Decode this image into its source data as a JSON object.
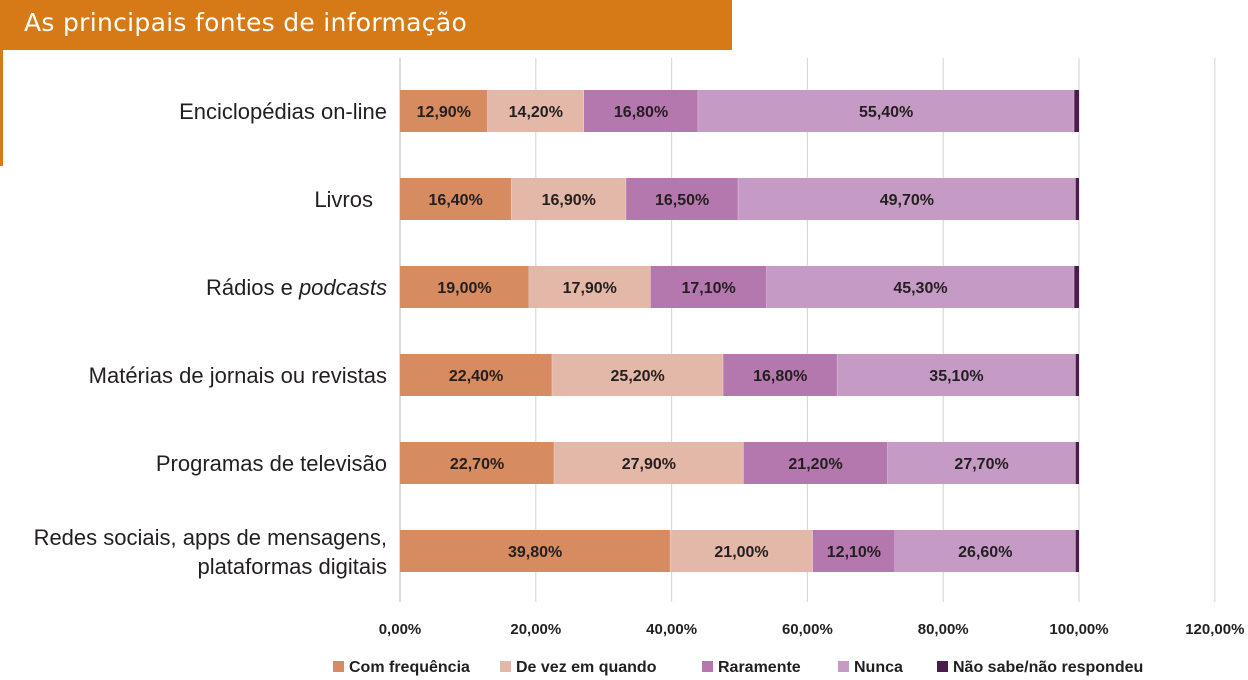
{
  "header": {
    "title": "As principais fontes de informação",
    "accent_color": "#d57a17"
  },
  "chart_data": {
    "type": "bar",
    "orientation": "horizontal",
    "stacked": true,
    "title": "As principais fontes de informação",
    "xlabel": "",
    "ylabel": "",
    "xlim": [
      0,
      120
    ],
    "x_ticks": [
      0,
      20,
      40,
      60,
      80,
      100,
      120
    ],
    "x_tick_labels": [
      "0,00%",
      "20,00%",
      "40,00%",
      "60,00%",
      "80,00%",
      "100,00%",
      "120,00%"
    ],
    "grid": true,
    "legend_position": "bottom",
    "categories": [
      "Enciclopédias on-line",
      "Livros",
      "Rádios e podcasts",
      "Matérias de jornais ou revistas",
      "Programas de televisão",
      "Redes sociais, apps de mensagens, plataformas digitais"
    ],
    "category_display": [
      [
        {
          "text": "Enciclopédias on-line",
          "italic": false
        }
      ],
      [
        {
          "text": "Livros",
          "italic": false
        }
      ],
      [
        {
          "text": "Rádios e ",
          "italic": false
        },
        {
          "text": "podcasts",
          "italic": true
        }
      ],
      [
        {
          "text": "Matérias de jornais ou revistas",
          "italic": false
        }
      ],
      [
        {
          "text": "Programas de televisão",
          "italic": false
        }
      ],
      [
        {
          "text": "Redes sociais, apps de mensagens,",
          "italic": false
        },
        {
          "text": "plataformas digitais",
          "italic": false,
          "newline": true
        }
      ]
    ],
    "series": [
      {
        "name": "Com frequência",
        "color": "#d68b60",
        "values": [
          12.9,
          16.4,
          19.0,
          22.4,
          22.7,
          39.8
        ],
        "labels": [
          "12,90%",
          "16,40%",
          "19,00%",
          "22,40%",
          "22,70%",
          "39,80%"
        ]
      },
      {
        "name": "De vez em quando",
        "color": "#e4b8a8",
        "values": [
          14.2,
          16.9,
          17.9,
          25.2,
          27.9,
          21.0
        ],
        "labels": [
          "14,20%",
          "16,90%",
          "17,90%",
          "25,20%",
          "27,90%",
          "21,00%"
        ]
      },
      {
        "name": "Raramente",
        "color": "#b478ae",
        "values": [
          16.8,
          16.5,
          17.1,
          16.8,
          21.2,
          12.1
        ],
        "labels": [
          "16,80%",
          "16,50%",
          "17,10%",
          "16,80%",
          "21,20%",
          "12,10%"
        ]
      },
      {
        "name": "Nunca",
        "color": "#c59bc6",
        "values": [
          55.4,
          49.7,
          45.3,
          35.1,
          27.7,
          26.6
        ],
        "labels": [
          "55,40%",
          "49,70%",
          "45,30%",
          "35,10%",
          "27,70%",
          "26,60%"
        ]
      },
      {
        "name": "Não sabe/não respondeu",
        "color": "#4a1d4a",
        "values": [
          0.7,
          0.5,
          0.7,
          0.5,
          0.5,
          0.5
        ],
        "labels": [
          "",
          "",
          "",
          "",
          "",
          ""
        ]
      }
    ]
  }
}
